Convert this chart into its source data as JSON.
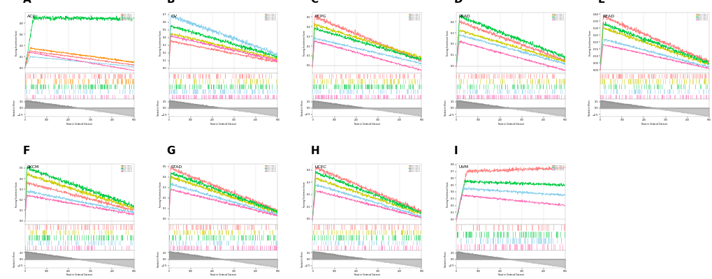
{
  "panels": [
    {
      "label": "A",
      "cancer": "ACC",
      "pattern": "acc",
      "n_lines": 5,
      "colors": [
        "#FF7F7F",
        "#FF8C00",
        "#00CC44",
        "#87CEEB",
        "#FF69B4"
      ]
    },
    {
      "label": "B",
      "cancer": "OV",
      "pattern": "ov",
      "n_lines": 5,
      "colors": [
        "#FF7F7F",
        "#CCCC00",
        "#00CC44",
        "#87CEEB",
        "#FF69B4"
      ]
    },
    {
      "label": "C",
      "cancer": "PCPG",
      "pattern": "pcpg",
      "n_lines": 5,
      "colors": [
        "#FF7F7F",
        "#CCCC00",
        "#00CC44",
        "#87CEEB",
        "#FF69B4"
      ]
    },
    {
      "label": "D",
      "cancer": "PRAD",
      "pattern": "prad",
      "n_lines": 5,
      "colors": [
        "#FF7F7F",
        "#CCCC00",
        "#00CC44",
        "#87CEEB",
        "#FF69B4"
      ]
    },
    {
      "label": "E",
      "cancer": "READ",
      "pattern": "read",
      "n_lines": 5,
      "colors": [
        "#FF7F7F",
        "#CCCC00",
        "#00CC44",
        "#87CEEB",
        "#FF69B4"
      ]
    },
    {
      "label": "F",
      "cancer": "SKCM",
      "pattern": "skcm",
      "n_lines": 5,
      "colors": [
        "#FF7F7F",
        "#CCCC00",
        "#00CC44",
        "#87CEEB",
        "#FF69B4"
      ]
    },
    {
      "label": "G",
      "cancer": "STAD",
      "pattern": "stad",
      "n_lines": 5,
      "colors": [
        "#FF7F7F",
        "#CCCC00",
        "#00CC44",
        "#87CEEB",
        "#FF69B4"
      ]
    },
    {
      "label": "H",
      "cancer": "UCEC",
      "pattern": "ucec",
      "n_lines": 5,
      "colors": [
        "#FF7F7F",
        "#CCCC00",
        "#00CC44",
        "#87CEEB",
        "#FF69B4"
      ]
    },
    {
      "label": "I",
      "cancer": "UVM",
      "pattern": "uvm",
      "n_lines": 4,
      "colors": [
        "#FF7F7F",
        "#00CC44",
        "#87CEEB",
        "#FF69B4"
      ]
    }
  ],
  "n": 500,
  "xlabel": "Rank in Ordered Dataset",
  "ylabel_es": "Running Enrichment Score",
  "ylabel_rank": "Ranked List Metric",
  "grid_color": "#DDDDDD",
  "bg_color": "#FFFFFF"
}
